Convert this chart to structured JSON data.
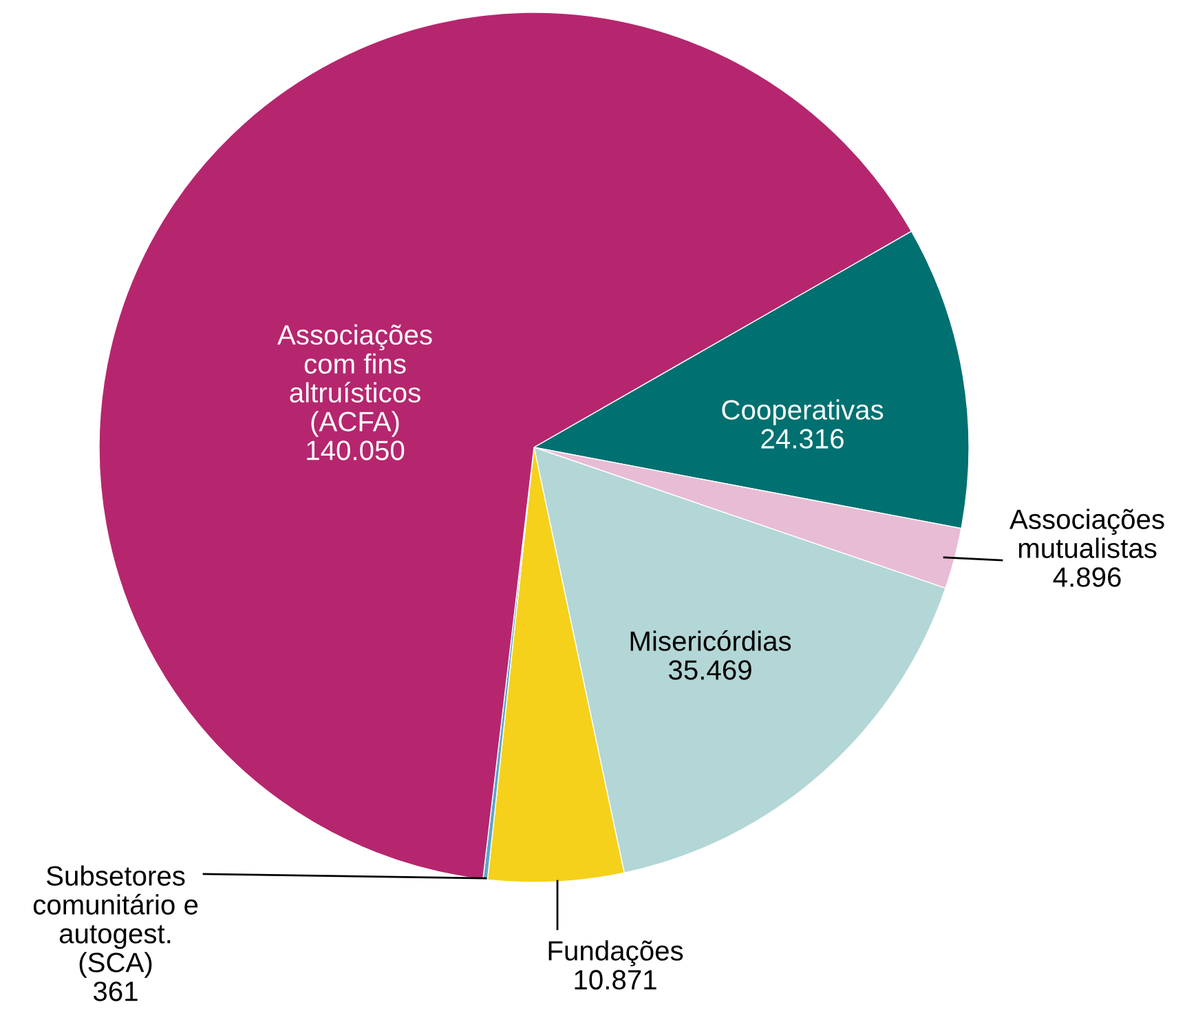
{
  "chart_data": {
    "type": "pie",
    "categories": [
      "Cooperativas",
      "Associações\nmutualistas",
      "Misericórdias",
      "Fundações",
      "Subsetores\ncomunitário e\nautogest.\n(SCA)",
      "Associações\ncom fins\naltruísticos\n(ACFA)"
    ],
    "values": [
      24316,
      4896,
      35469,
      10871,
      361,
      140050
    ],
    "value_labels": [
      "24.316",
      "4.896",
      "35.469",
      "10.871",
      "361",
      "140.050"
    ],
    "colors": [
      "#007070",
      "#e8bcd4",
      "#b3d6d6",
      "#f5d11b",
      "#5aa7c8",
      "#b5266e"
    ]
  }
}
